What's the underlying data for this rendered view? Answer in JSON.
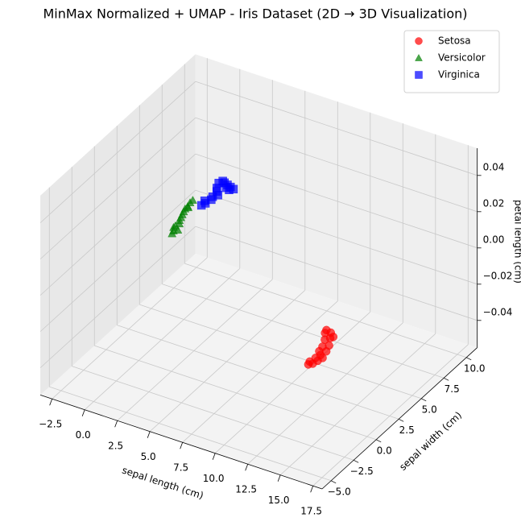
{
  "chart_data": {
    "type": "scatter3d",
    "title": "MinMax Normalized + UMAP - Iris Dataset (2D → 3D Visualization)",
    "x_label": "sepal length (cm)",
    "y_label": "sepal width (cm)",
    "z_label": "petal length (cm)",
    "xlim": [
      -3.4,
      18.2
    ],
    "ylim": [
      -6,
      11.2
    ],
    "zlim": [
      -0.055,
      0.055
    ],
    "xticks": [
      {
        "value": -2.5,
        "label": "−2.5"
      },
      {
        "value": 0,
        "label": "0.0"
      },
      2.5,
      {
        "value": 5,
        "label": "5.0"
      },
      7.5,
      {
        "value": 10,
        "label": "10.0"
      },
      12.5,
      {
        "value": 15,
        "label": "15.0"
      },
      17.5
    ],
    "yticks": [
      {
        "value": -5,
        "label": "−5.0"
      },
      {
        "value": -2.5,
        "label": "−2.5"
      },
      {
        "value": 0,
        "label": "0.0"
      },
      2.5,
      {
        "value": 5,
        "label": "5.0"
      },
      7.5,
      {
        "value": 10,
        "label": "10.0"
      }
    ],
    "zticks": [
      {
        "value": -0.04,
        "label": "−0.04"
      },
      {
        "value": -0.02,
        "label": "−0.02"
      },
      {
        "value": 0,
        "label": "0.00"
      },
      0.02,
      0.04
    ],
    "grid": true,
    "legend": "upper right",
    "series": [
      {
        "name": "Setosa",
        "color": "#ff0000",
        "marker": "circle",
        "x": [
          15.9,
          16.1,
          15.8,
          16.2,
          15.9,
          16.3,
          16.0,
          15.7,
          16.1,
          15.6,
          15.9,
          15.3,
          15.5,
          14.9,
          15.2,
          14.8,
          15.6
        ],
        "y": [
          -4.2,
          -4.0,
          -3.9,
          -3.6,
          -3.4,
          -3.2,
          -3.0,
          -2.7,
          -2.5,
          -2.2,
          -1.9,
          -1.5,
          -1.2,
          -0.9,
          -0.7,
          -0.6,
          -1.0
        ],
        "z": [
          0,
          0,
          0,
          0,
          0,
          0,
          0,
          0,
          0,
          0,
          0,
          0,
          0,
          0,
          0,
          0,
          0
        ]
      },
      {
        "name": "Versicolor",
        "color": "#008000",
        "marker": "triangle",
        "x": [
          0.2,
          0.1,
          0.3,
          -0.1,
          0.0,
          -0.2,
          -0.3,
          -0.4,
          -0.5,
          -0.6,
          -0.6,
          -0.7,
          -0.7,
          -0.5,
          -0.1
        ],
        "y": [
          3.4,
          3.7,
          3.9,
          4.2,
          4.5,
          4.8,
          5.1,
          5.4,
          5.7,
          6.0,
          6.3,
          6.7,
          7.0,
          6.2,
          4.0
        ],
        "z": [
          0,
          0,
          0,
          0,
          0,
          0,
          0,
          0,
          0,
          0,
          0,
          0,
          0,
          0,
          0
        ]
      },
      {
        "name": "Virginica",
        "color": "#0000ff",
        "marker": "square",
        "x": [
          0.1,
          0.2,
          0.0,
          0.3,
          0.2,
          0.4,
          0.1,
          -0.1,
          -0.3,
          -0.2,
          0.0,
          0.3,
          0.6,
          0.9,
          0.7,
          0.4
        ],
        "y": [
          6.8,
          7.1,
          7.3,
          7.6,
          7.9,
          8.2,
          8.5,
          8.8,
          9.3,
          9.6,
          9.5,
          9.4,
          9.3,
          9.2,
          9.0,
          9.1
        ],
        "z": [
          0,
          0,
          0,
          0,
          0,
          0,
          0,
          0,
          0,
          0,
          0,
          0,
          0,
          0,
          0,
          0
        ]
      }
    ]
  }
}
